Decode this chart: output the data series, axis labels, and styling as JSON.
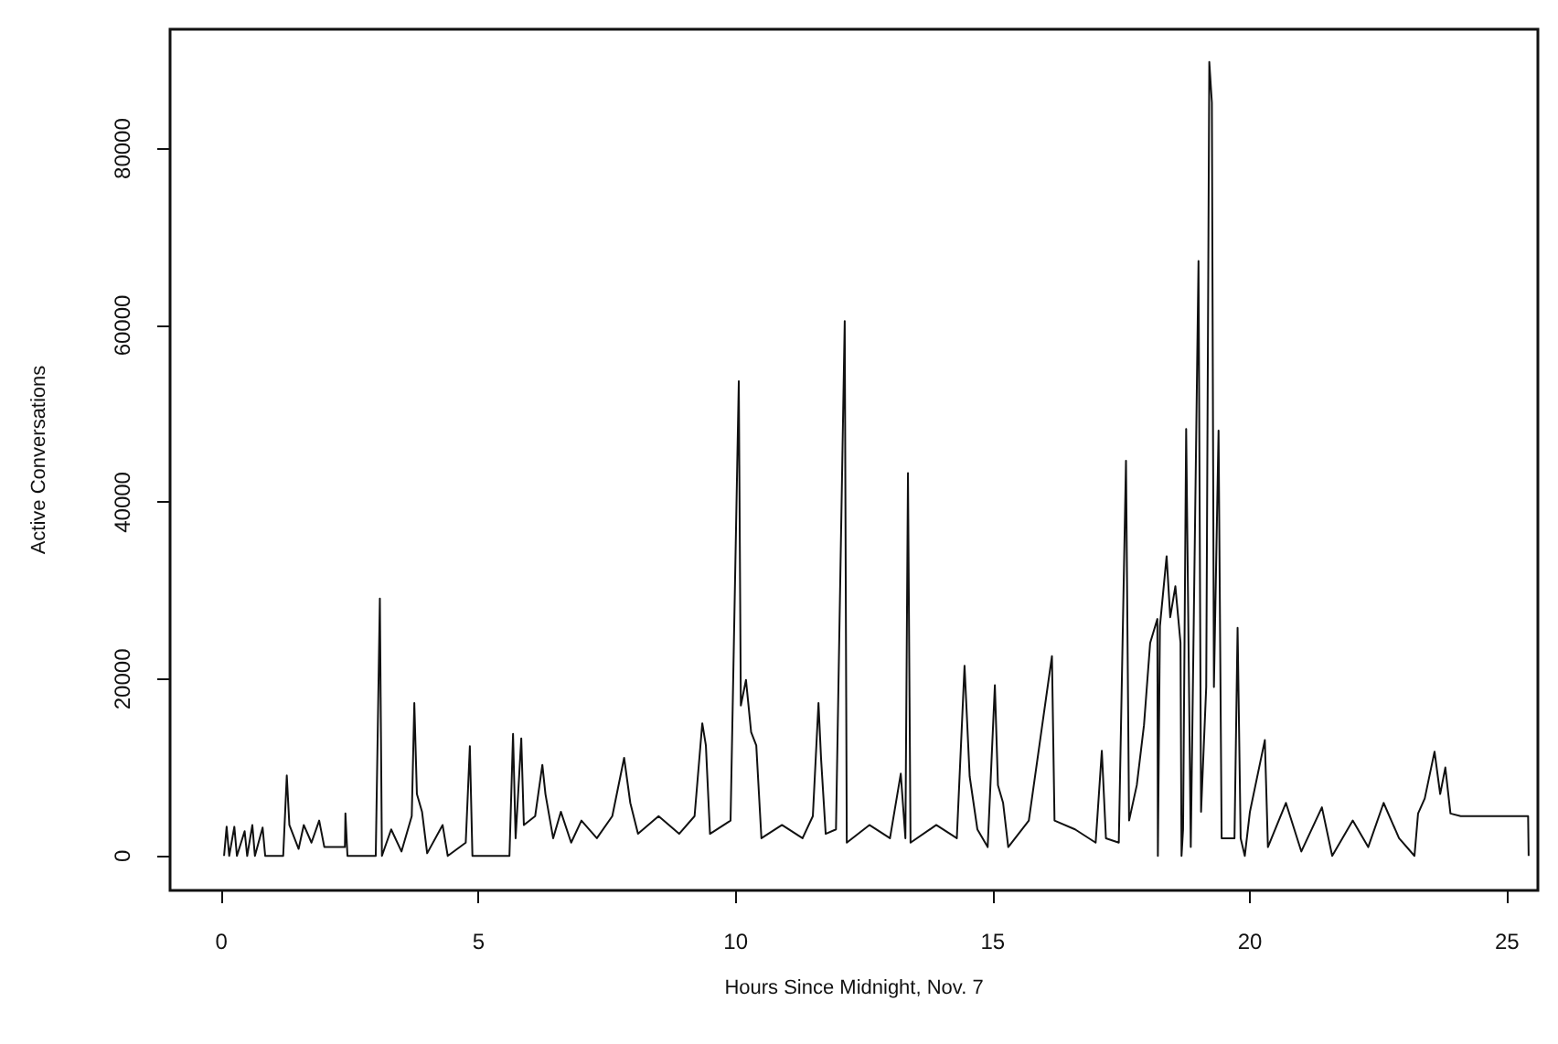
{
  "chart_data": {
    "type": "line",
    "xlabel": "Hours Since Midnight, Nov. 7",
    "ylabel": "Active Conversations",
    "xlim": [
      -1,
      25.6
    ],
    "ylim": [
      -3900,
      93500
    ],
    "xticks": [
      0,
      5,
      10,
      15,
      20,
      25
    ],
    "yticks": [
      0,
      20000,
      40000,
      60000,
      80000
    ],
    "grid": false,
    "marker": "none",
    "line_style": "solid",
    "series": [
      {
        "color": "#111111",
        "x": [
          0.05,
          0.1,
          0.15,
          0.25,
          0.3,
          0.45,
          0.5,
          0.6,
          0.65,
          0.8,
          0.85,
          1.2,
          1.27,
          1.32,
          1.5,
          1.6,
          1.75,
          1.9,
          2.0,
          2.4,
          2.41,
          2.45,
          3.0,
          3.08,
          3.12,
          3.3,
          3.5,
          3.7,
          3.75,
          3.8,
          3.9,
          4.0,
          4.3,
          4.4,
          4.75,
          4.83,
          4.88,
          5.6,
          5.67,
          5.72,
          5.83,
          5.88,
          6.1,
          6.24,
          6.3,
          6.45,
          6.6,
          6.8,
          7.0,
          7.3,
          7.6,
          7.83,
          7.95,
          8.1,
          8.5,
          8.9,
          9.2,
          9.35,
          9.42,
          9.5,
          9.9,
          10.06,
          10.1,
          10.2,
          10.3,
          10.4,
          10.5,
          10.9,
          11.3,
          11.5,
          11.61,
          11.66,
          11.75,
          11.95,
          12.12,
          12.16,
          12.6,
          13.0,
          13.21,
          13.3,
          13.35,
          13.4,
          13.9,
          14.3,
          14.45,
          14.55,
          14.7,
          14.9,
          15.04,
          15.1,
          15.2,
          15.3,
          15.7,
          16.15,
          16.2,
          16.6,
          17.0,
          17.12,
          17.2,
          17.45,
          17.59,
          17.65,
          17.8,
          17.94,
          18.06,
          18.2,
          18.21,
          18.25,
          18.38,
          18.45,
          18.55,
          18.65,
          18.67,
          18.7,
          18.76,
          18.85,
          19.0,
          19.05,
          19.15,
          19.21,
          19.26,
          19.3,
          19.39,
          19.45,
          19.7,
          19.76,
          19.82,
          19.9,
          20.0,
          20.29,
          20.35,
          20.7,
          21.0,
          21.4,
          21.6,
          22.0,
          22.3,
          22.6,
          22.9,
          23.2,
          23.27,
          23.4,
          23.59,
          23.7,
          23.8,
          23.9,
          24.1,
          25.41,
          25.42
        ],
        "values": [
          0,
          3300,
          0,
          3300,
          0,
          2800,
          0,
          3500,
          0,
          3200,
          0,
          0,
          9100,
          3500,
          800,
          3500,
          1500,
          4000,
          1000,
          1000,
          4800,
          0,
          0,
          29100,
          0,
          3000,
          500,
          4500,
          17300,
          7000,
          5000,
          300,
          3500,
          0,
          1500,
          12400,
          0,
          0,
          13800,
          2000,
          13300,
          3500,
          4500,
          10300,
          7000,
          2000,
          5000,
          1500,
          4000,
          2000,
          4500,
          11100,
          6000,
          2500,
          4500,
          2500,
          4500,
          15000,
          12500,
          2500,
          4000,
          53700,
          17000,
          19900,
          14000,
          12500,
          2000,
          3500,
          2000,
          4500,
          17300,
          11000,
          2500,
          3000,
          60500,
          1500,
          3500,
          2000,
          9300,
          2000,
          43300,
          1500,
          3500,
          2000,
          21500,
          9000,
          3000,
          1000,
          19300,
          8000,
          6000,
          1000,
          4000,
          22600,
          4000,
          3000,
          1500,
          11900,
          2000,
          1500,
          44700,
          4000,
          8000,
          14800,
          24100,
          26800,
          0,
          26000,
          33900,
          27000,
          30500,
          24100,
          0,
          3000,
          48300,
          1000,
          67300,
          5000,
          19100,
          89800,
          85200,
          19100,
          48100,
          2000,
          2000,
          25800,
          2000,
          0,
          5000,
          13100,
          1000,
          6000,
          500,
          5500,
          0,
          4000,
          1000,
          6000,
          2000,
          0,
          4800,
          6500,
          11800,
          7000,
          10000,
          4800,
          4500,
          4500,
          0
        ]
      }
    ]
  }
}
